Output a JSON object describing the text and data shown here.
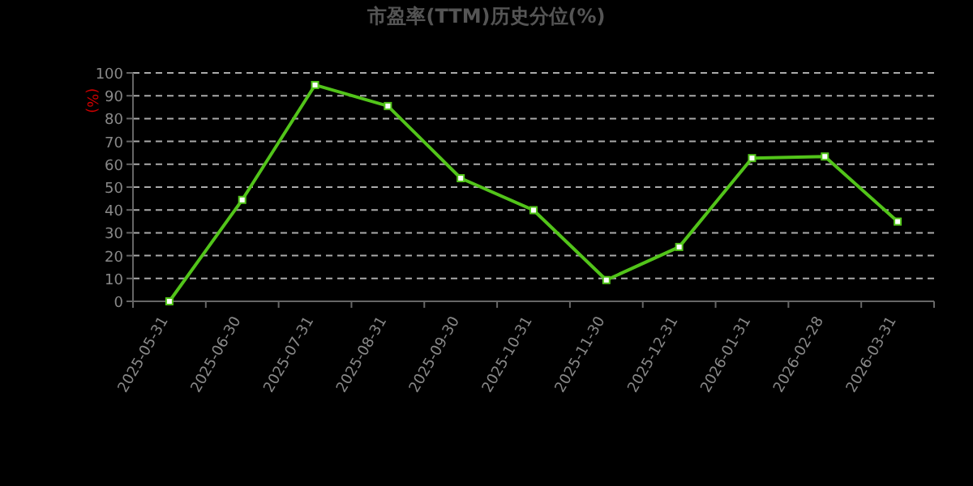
{
  "chart_data": {
    "type": "line",
    "title": "市盈率(TTM)历史分位(%)",
    "ylabel": "(%)",
    "categories": [
      "2025-05-31",
      "2025-06-30",
      "2025-07-31",
      "2025-08-31",
      "2025-09-30",
      "2025-10-31",
      "2025-11-30",
      "2025-12-31",
      "2026-01-31",
      "2026-02-28",
      "2026-03-31"
    ],
    "series": [
      {
        "color": "#52c41a",
        "values": [
          0,
          44.4,
          94.7,
          85.5,
          53.9,
          39.9,
          9.3,
          23.8,
          62.7,
          63.4,
          34.9
        ]
      }
    ],
    "ylim": [
      0,
      100
    ],
    "yticks": [
      0,
      10,
      20,
      30,
      40,
      50,
      60,
      70,
      80,
      90,
      100
    ],
    "grid": "y",
    "marker": "square",
    "line_style": "solid"
  }
}
